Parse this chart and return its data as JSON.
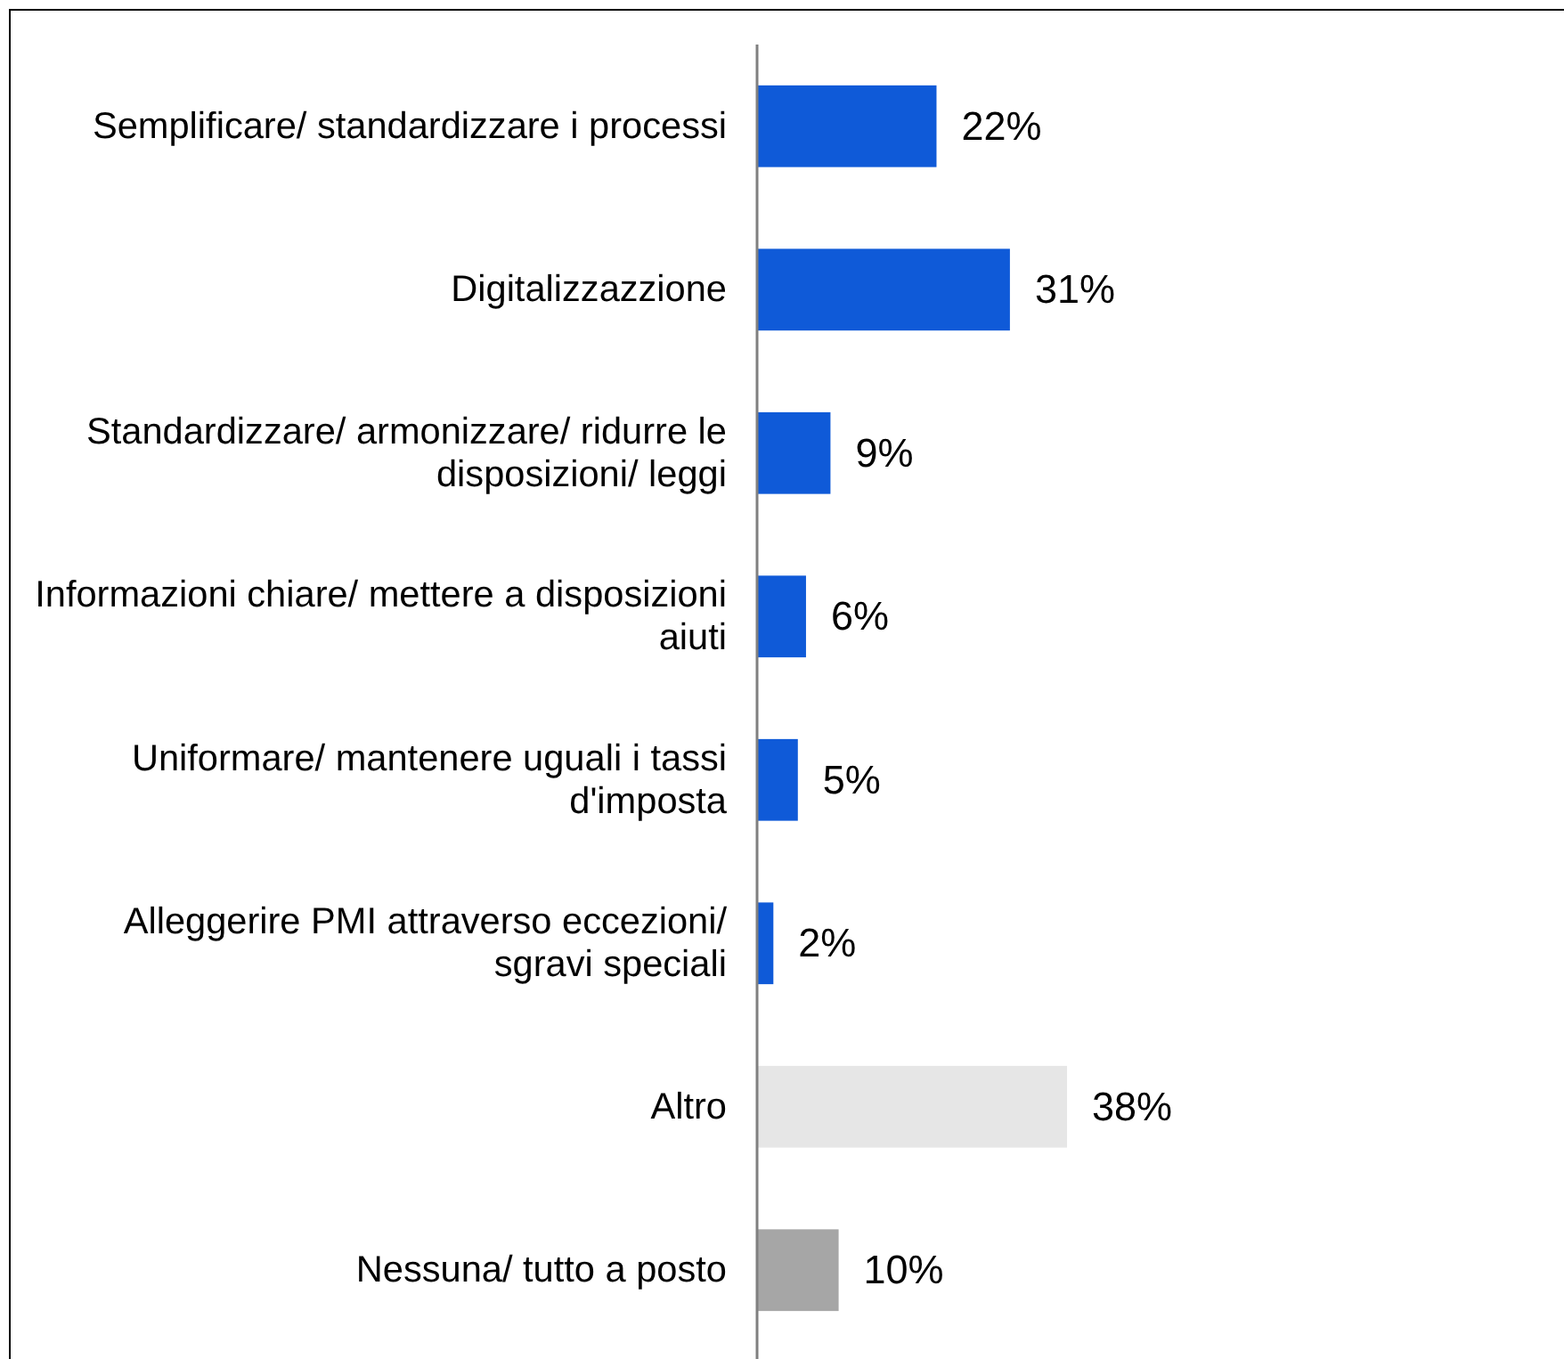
{
  "chart_data": {
    "type": "bar",
    "orientation": "horizontal",
    "tick_labels": "y",
    "categories": [
      "Semplificare/ standardizzare i processi",
      "Digitalizzazzione",
      "Standardizzare/ armonizzare/ ridurre le disposizioni/ leggi",
      "Informazioni chiare/ mettere a disposizioni aiuti",
      "Uniformare/ mantenere uguali i tassi d'imposta",
      "Alleggerire PMI attraverso eccezioni/ sgravi speciali",
      "Altro",
      "Nessuna/ tutto a posto"
    ],
    "values": [
      22,
      31,
      9,
      6,
      5,
      2,
      38,
      10
    ],
    "colors": [
      "#0f5ad8",
      "#0f5ad8",
      "#0f5ad8",
      "#0f5ad8",
      "#0f5ad8",
      "#0f5ad8",
      "#e6e6e6",
      "#a6a6a6"
    ],
    "value_labels": [
      "22%",
      "31%",
      "9%",
      "6%",
      "5%",
      "2%",
      "38%",
      "10%"
    ]
  }
}
